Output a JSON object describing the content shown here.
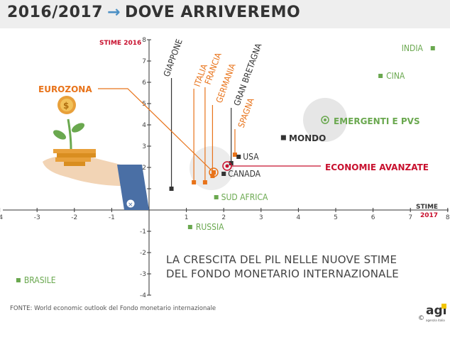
{
  "header": {
    "title_left": "2016/2017",
    "title_right": "DOVE ARRIVEREMO"
  },
  "subtitle": {
    "line1": "LA CRESCITA DEL PIL NELLE NUOVE STIME",
    "line2": "DEL FONDO MONETARIO INTERNAZIONALE"
  },
  "source": "FONTE:  World economic outlook del Fondo monetario internazionale",
  "logo": {
    "text": "agi",
    "sub": "agenzia italia",
    "copyright": "©"
  },
  "colors": {
    "green": "#6aa84f",
    "orange": "#e8731a",
    "red": "#c8102e",
    "dark": "#333333",
    "blue": "#4a8fc4"
  },
  "chart_data": {
    "type": "scatter",
    "xlabel": "STIME 2017",
    "xlabel_parts": [
      "STIME",
      "2017"
    ],
    "ylabel": "STIME 2016",
    "xlim": [
      -4,
      8
    ],
    "ylim": [
      -4,
      8
    ],
    "x_ticks": [
      -4,
      -3,
      -2,
      -1,
      1,
      2,
      3,
      4,
      5,
      6,
      7,
      8
    ],
    "y_ticks": [
      -4,
      -3,
      -2,
      -1,
      1,
      2,
      3,
      4,
      5,
      6,
      7,
      8
    ],
    "points": [
      {
        "name": "INDIA",
        "x": 7.6,
        "y": 7.6,
        "group": "green"
      },
      {
        "name": "CINA",
        "x": 6.2,
        "y": 6.3,
        "group": "green"
      },
      {
        "name": "BRASILE",
        "x": -3.5,
        "y": -3.3,
        "group": "green"
      },
      {
        "name": "RUSSIA",
        "x": 1.1,
        "y": -0.8,
        "group": "green"
      },
      {
        "name": "SUD AFRICA",
        "x": 1.8,
        "y": 0.6,
        "group": "green"
      },
      {
        "name": "GIAPPONE",
        "x": 0.6,
        "y": 1.0,
        "group": "dark"
      },
      {
        "name": "ITALIA",
        "x": 1.2,
        "y": 1.3,
        "group": "orange"
      },
      {
        "name": "FRANCIA",
        "x": 1.5,
        "y": 1.3,
        "group": "orange"
      },
      {
        "name": "GERMANIA",
        "x": 1.7,
        "y": 1.6,
        "group": "orange"
      },
      {
        "name": "GRAN BRETAGNA",
        "x": 2.2,
        "y": 2.2,
        "group": "dark"
      },
      {
        "name": "SPAGNA",
        "x": 2.3,
        "y": 2.6,
        "group": "orange"
      },
      {
        "name": "USA",
        "x": 2.4,
        "y": 2.5,
        "group": "dark"
      },
      {
        "name": "CANADA",
        "x": 2.0,
        "y": 1.7,
        "group": "dark"
      },
      {
        "name": "MONDO",
        "x": 3.6,
        "y": 3.4,
        "group": "dark"
      },
      {
        "name": "EMERGENTI E PVS",
        "x": 4.6,
        "y": 4.2,
        "group": "green"
      },
      {
        "name": "ECONOMIE AVANZATE",
        "x": 2.1,
        "y": 2.0,
        "group": "red"
      },
      {
        "name": "EUROZONA",
        "x": 1.6,
        "y": 1.7,
        "group": "orange"
      }
    ]
  }
}
